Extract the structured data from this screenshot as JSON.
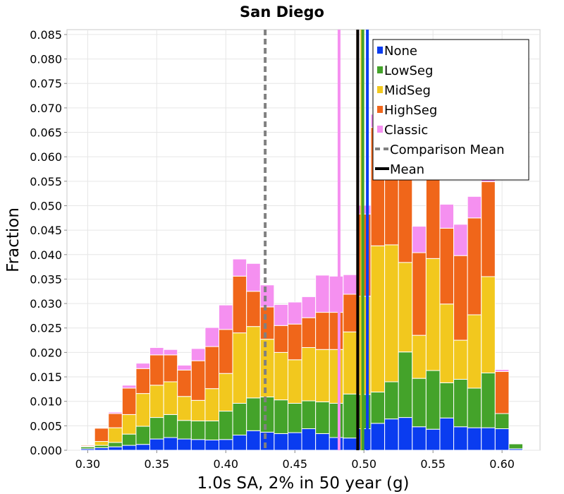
{
  "chart_data": {
    "type": "bar",
    "stacked": true,
    "title": "San Diego",
    "xlabel": "1.0s SA, 2% in 50 year (g)",
    "ylabel": "Fraction",
    "xlim": [
      0.285,
      0.6275
    ],
    "ylim": [
      0,
      0.086
    ],
    "bin_width": 0.01,
    "grid": true,
    "legend_position": "top-right",
    "x_ticks": [
      "0.30",
      "0.35",
      "0.40",
      "0.45",
      "0.50",
      "0.55",
      "0.60"
    ],
    "x_tick_values": [
      0.3,
      0.35,
      0.4,
      0.45,
      0.5,
      0.55,
      0.6
    ],
    "y_ticks": [
      "0.000",
      "0.005",
      "0.010",
      "0.015",
      "0.020",
      "0.025",
      "0.030",
      "0.035",
      "0.040",
      "0.045",
      "0.050",
      "0.055",
      "0.060",
      "0.065",
      "0.070",
      "0.075",
      "0.080",
      "0.085"
    ],
    "y_tick_values": [
      0,
      0.005,
      0.01,
      0.015,
      0.02,
      0.025,
      0.03,
      0.035,
      0.04,
      0.045,
      0.05,
      0.055,
      0.06,
      0.065,
      0.07,
      0.075,
      0.08,
      0.085
    ],
    "bin_centers": [
      0.29,
      0.3,
      0.31,
      0.32,
      0.33,
      0.34,
      0.35,
      0.36,
      0.37,
      0.38,
      0.39,
      0.4,
      0.41,
      0.42,
      0.43,
      0.44,
      0.45,
      0.46,
      0.47,
      0.48,
      0.49,
      0.5,
      0.51,
      0.52,
      0.53,
      0.54,
      0.55,
      0.56,
      0.57,
      0.58,
      0.59,
      0.6,
      0.61
    ],
    "series": [
      {
        "name": "None",
        "color": "#0a3cf0",
        "values": [
          0.0,
          0.0003,
          0.0005,
          0.0007,
          0.001,
          0.0012,
          0.0023,
          0.0026,
          0.0023,
          0.0022,
          0.0021,
          0.0022,
          0.0031,
          0.004,
          0.0037,
          0.0034,
          0.0036,
          0.0044,
          0.0034,
          0.0026,
          0.0025,
          0.0044,
          0.0055,
          0.0064,
          0.0067,
          0.0048,
          0.0043,
          0.0066,
          0.0048,
          0.0046,
          0.0046,
          0.0044,
          0.0003
        ]
      },
      {
        "name": "LowSeg",
        "color": "#44a32a",
        "values": [
          0.0,
          0.0004,
          0.0005,
          0.0009,
          0.0023,
          0.0037,
          0.0044,
          0.0047,
          0.0038,
          0.0038,
          0.0039,
          0.0058,
          0.0065,
          0.0067,
          0.0072,
          0.0069,
          0.006,
          0.0057,
          0.0065,
          0.007,
          0.009,
          0.007,
          0.0064,
          0.0076,
          0.0134,
          0.0099,
          0.012,
          0.0072,
          0.0097,
          0.0081,
          0.0112,
          0.0031,
          0.001
        ]
      },
      {
        "name": "MidSeg",
        "color": "#f2c81e",
        "values": [
          0.0,
          0.0001,
          0.0008,
          0.003,
          0.004,
          0.0067,
          0.0066,
          0.0067,
          0.0049,
          0.0042,
          0.0066,
          0.0077,
          0.0144,
          0.0146,
          0.0118,
          0.0097,
          0.0089,
          0.0109,
          0.0107,
          0.011,
          0.0127,
          0.0201,
          0.0299,
          0.028,
          0.0183,
          0.0088,
          0.0229,
          0.0161,
          0.008,
          0.015,
          0.0197,
          0.0,
          0.0
        ]
      },
      {
        "name": "HighSeg",
        "color": "#f0661a",
        "values": [
          0.0,
          0.0002,
          0.0027,
          0.0029,
          0.0054,
          0.0051,
          0.0062,
          0.0055,
          0.0054,
          0.0081,
          0.0086,
          0.009,
          0.0116,
          0.0072,
          0.0066,
          0.0055,
          0.0073,
          0.0061,
          0.0076,
          0.0076,
          0.0077,
          0.0168,
          0.0242,
          0.024,
          0.0209,
          0.0169,
          0.0231,
          0.0155,
          0.0173,
          0.0198,
          0.0194,
          0.0086,
          0.0
        ]
      },
      {
        "name": "Classic",
        "color": "#f590f0",
        "values": [
          0.0,
          0.0001,
          0.0,
          0.0003,
          0.0006,
          0.0011,
          0.0015,
          0.0011,
          0.001,
          0.0025,
          0.0039,
          0.005,
          0.0035,
          0.0057,
          0.0045,
          0.0043,
          0.0045,
          0.0043,
          0.0076,
          0.0074,
          0.004,
          0.0018,
          0.0027,
          0.004,
          0.0068,
          0.0054,
          0.004,
          0.0049,
          0.0064,
          0.0044,
          0.0008,
          0.0004,
          0.0
        ]
      }
    ],
    "vertical_lines": [
      {
        "name": "Comparison Mean",
        "x": 0.4285,
        "color": "#808080",
        "style": "dashed"
      },
      {
        "name": "Classic",
        "x": 0.482,
        "color": "#f590f0",
        "style": "solid"
      },
      {
        "name": "HighSeg",
        "x": 0.4955,
        "color": "#f0661a",
        "style": "solid"
      },
      {
        "name": "MidSeg",
        "x": 0.4985,
        "color": "#f2c81e",
        "style": "solid"
      },
      {
        "name": "LowSeg",
        "x": 0.4992,
        "color": "#44a32a",
        "style": "solid"
      },
      {
        "name": "None",
        "x": 0.5025,
        "color": "#0a3cf0",
        "style": "solid"
      },
      {
        "name": "Mean",
        "x": 0.4955,
        "color": "#000000",
        "style": "solid"
      }
    ],
    "legend": [
      {
        "label": "None",
        "color": "#0a3cf0",
        "kind": "box"
      },
      {
        "label": "LowSeg",
        "color": "#44a32a",
        "kind": "box"
      },
      {
        "label": "MidSeg",
        "color": "#f2c81e",
        "kind": "box"
      },
      {
        "label": "HighSeg",
        "color": "#f0661a",
        "kind": "box"
      },
      {
        "label": "Classic",
        "color": "#f590f0",
        "kind": "box"
      },
      {
        "label": "Comparison Mean",
        "color": "#808080",
        "kind": "dash"
      },
      {
        "label": "Mean",
        "color": "#000000",
        "kind": "line"
      }
    ]
  }
}
